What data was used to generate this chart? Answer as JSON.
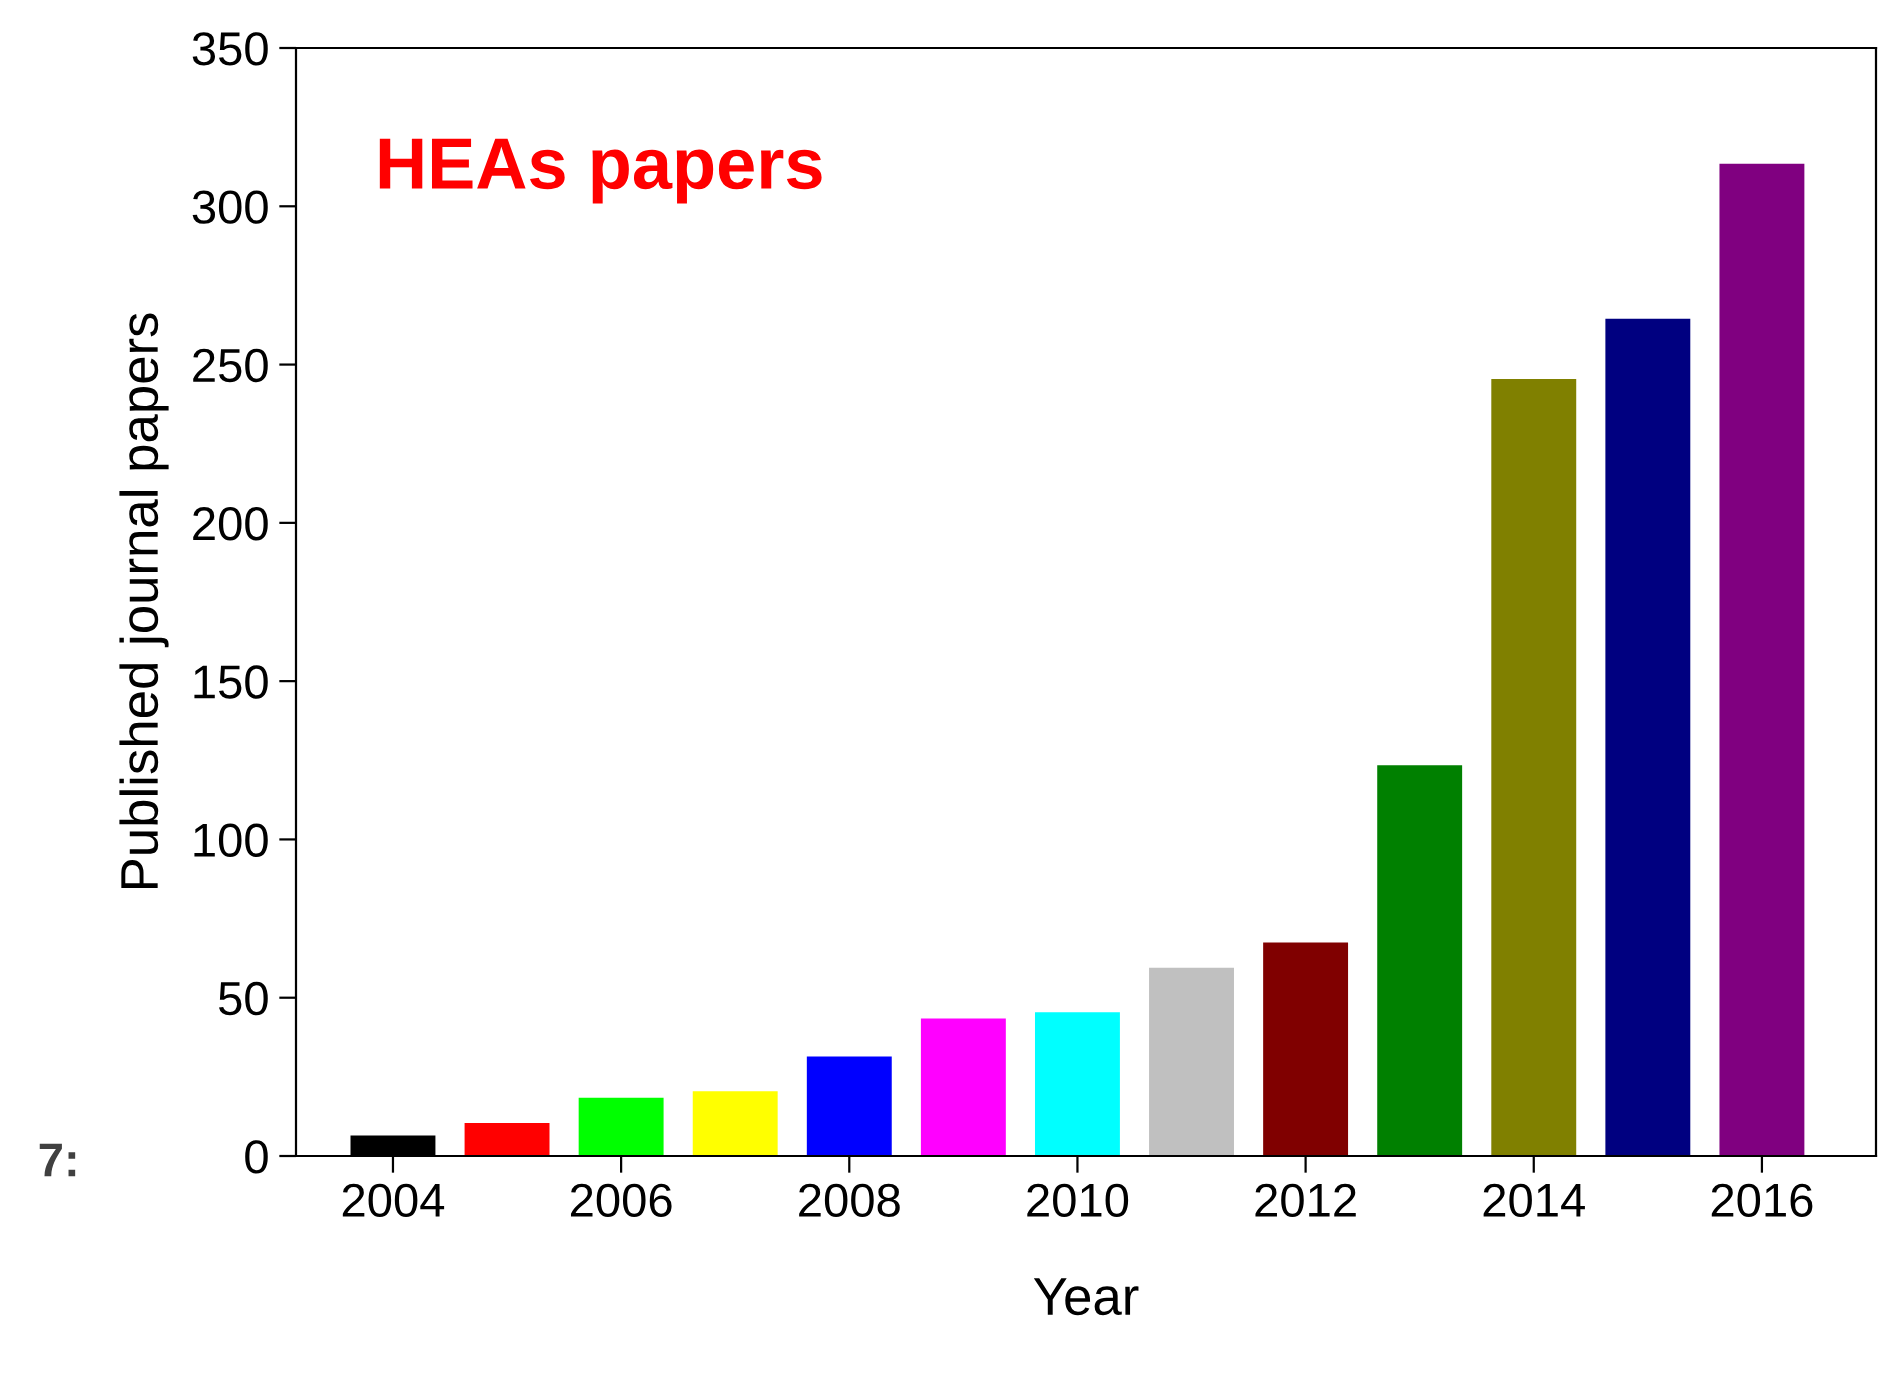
{
  "chart_data": {
    "type": "bar",
    "title": "HEAs papers",
    "xlabel": "Year",
    "ylabel": "Published journal papers",
    "x": [
      2004,
      2005,
      2006,
      2007,
      2008,
      2009,
      2010,
      2011,
      2012,
      2013,
      2014,
      2015,
      2016
    ],
    "values": [
      6,
      10,
      18,
      20,
      31,
      43,
      45,
      59,
      67,
      123,
      245,
      264,
      313
    ],
    "colors": [
      "#000000",
      "#ff0000",
      "#00ff00",
      "#ffff00",
      "#0000ff",
      "#ff00ff",
      "#00ffff",
      "#c0c0c0",
      "#800000",
      "#008000",
      "#808000",
      "#000080",
      "#800080"
    ],
    "xlim": [
      2003.15,
      2017
    ],
    "xticks": [
      2004,
      2006,
      2008,
      2010,
      2012,
      2014,
      2016
    ],
    "ylim": [
      0,
      350
    ],
    "yticks": [
      0,
      50,
      100,
      150,
      200,
      250,
      300,
      350
    ],
    "grid": false,
    "legend": false,
    "annotations": [
      "7:"
    ]
  }
}
